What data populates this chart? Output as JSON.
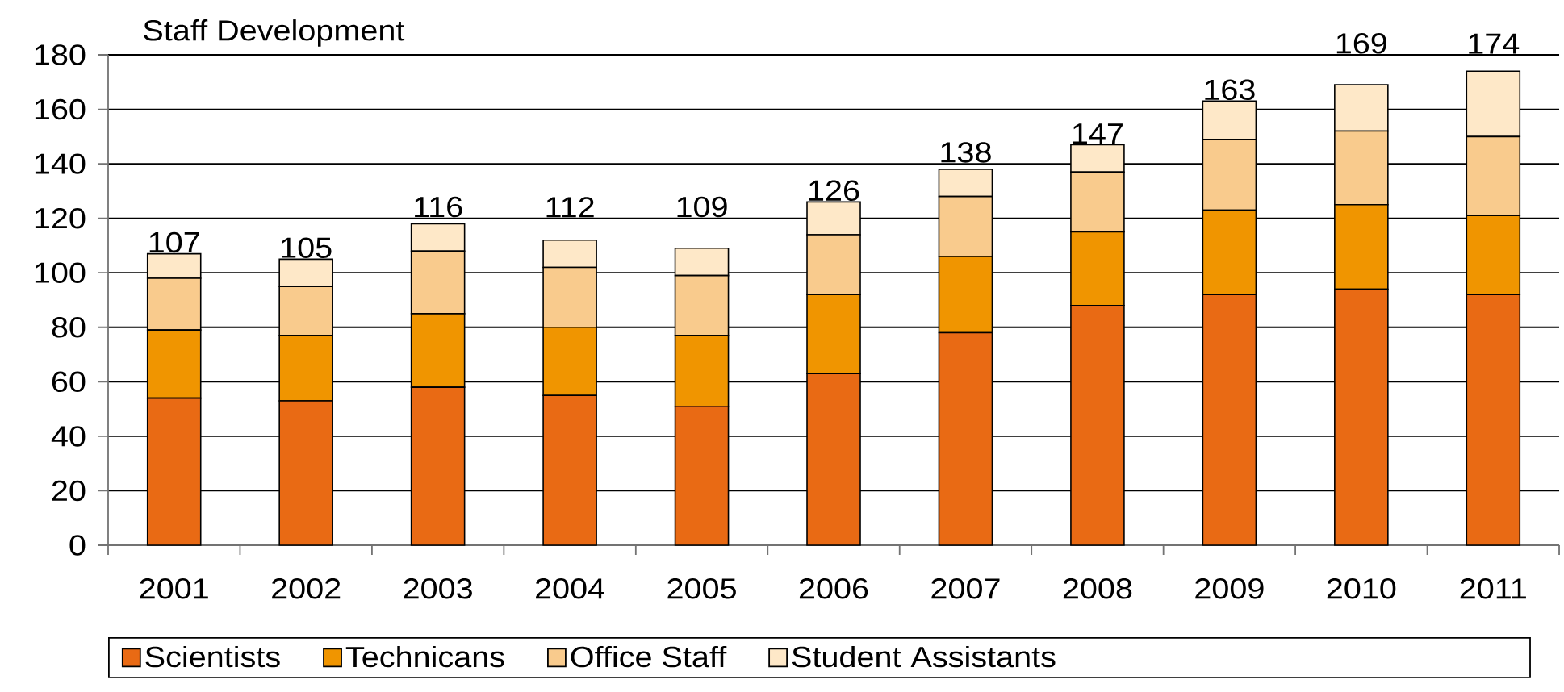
{
  "chart_data": {
    "type": "bar",
    "title": "Staff Development",
    "stacked": true,
    "categories": [
      "2001",
      "2002",
      "2003",
      "2004",
      "2005",
      "2006",
      "2007",
      "2008",
      "2009",
      "2010",
      "2011"
    ],
    "series": [
      {
        "name": "Scientists",
        "color": "#e96a14",
        "values": [
          54,
          53,
          58,
          55,
          51,
          63,
          78,
          88,
          92,
          94,
          92
        ]
      },
      {
        "name": "Technicans",
        "color": "#f09500",
        "values": [
          25,
          24,
          27,
          25,
          26,
          29,
          28,
          27,
          31,
          31,
          29
        ]
      },
      {
        "name": "Office Staff",
        "color": "#f9cb8d",
        "values": [
          19,
          18,
          23,
          22,
          22,
          22,
          22,
          22,
          26,
          27,
          29
        ]
      },
      {
        "name": "Student Assistants",
        "color": "#fee8c8",
        "values": [
          9,
          10,
          10,
          10,
          10,
          12,
          10,
          10,
          14,
          17,
          24
        ]
      }
    ],
    "totals": [
      "107",
      "105",
      "116",
      "112",
      "109",
      "126",
      "138",
      "147",
      "163",
      "169",
      "174"
    ],
    "ylim": [
      0,
      180
    ],
    "yticks": [
      0,
      20,
      40,
      60,
      80,
      100,
      120,
      140,
      160,
      180
    ],
    "grid": "y",
    "legend": "bottom"
  }
}
